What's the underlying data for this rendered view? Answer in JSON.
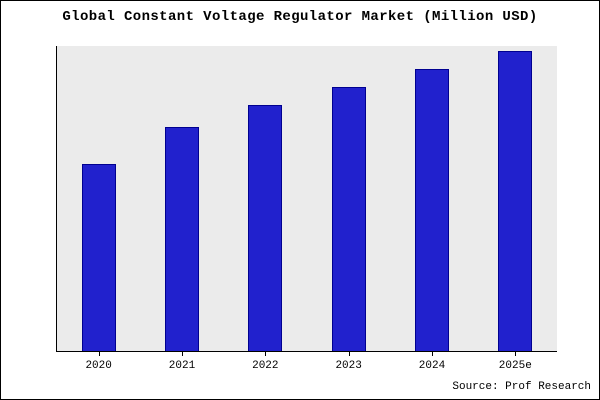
{
  "source_label": "Source: Prof Research",
  "chart_data": {
    "type": "bar",
    "title": "Global Constant Voltage Regulator Market (Million USD)",
    "categories": [
      "2020",
      "2021",
      "2022",
      "2023",
      "2024",
      "2025e"
    ],
    "values": [
      62.3,
      74.7,
      82.0,
      87.7,
      94.0,
      100.0
    ],
    "xlabel": "",
    "ylabel": "",
    "ylim": [
      0,
      101.5
    ],
    "grid": false,
    "legend": false,
    "y_axis_tick_labels_visible": false,
    "values_unit": "relative (no y-axis scale shown; tallest bar = 100)",
    "bar_color": "#2121cd",
    "bar_edge_color": "#000090",
    "plot_background": "#ebebeb",
    "frame_border_color": "#000000"
  }
}
